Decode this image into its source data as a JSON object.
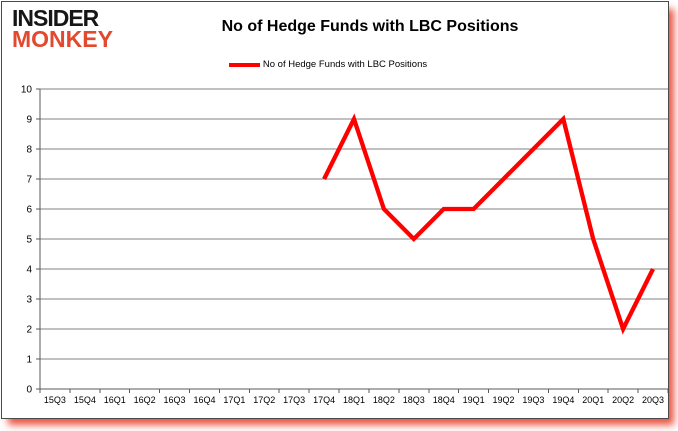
{
  "logo": {
    "line1": "INSIDER",
    "line2": "MONKEY"
  },
  "header": {
    "title": "No of Hedge Funds with LBC Positions"
  },
  "legend": {
    "label": "No of Hedge Funds with LBC Positions"
  },
  "colors": {
    "series_red": "#ff0000",
    "logo_red": "#e2492f",
    "gridline": "#808080",
    "axis": "#595959",
    "text": "#000000",
    "shadow_red": "#e63a24"
  },
  "chart_data": {
    "type": "line",
    "title": "No of Hedge Funds with LBC Positions",
    "categories": [
      "15Q3",
      "15Q4",
      "16Q1",
      "16Q2",
      "16Q3",
      "16Q4",
      "17Q1",
      "17Q2",
      "17Q3",
      "17Q4",
      "18Q1",
      "18Q2",
      "18Q3",
      "18Q4",
      "19Q1",
      "19Q2",
      "19Q3",
      "19Q4",
      "20Q1",
      "20Q2",
      "20Q3"
    ],
    "series": [
      {
        "name": "No of Hedge Funds with LBC Positions",
        "color": "#ff0000",
        "values": [
          null,
          null,
          null,
          null,
          null,
          null,
          null,
          null,
          null,
          7,
          9,
          6,
          5,
          6,
          6,
          7,
          8,
          9,
          5,
          2,
          4
        ]
      }
    ],
    "xlabel": "",
    "ylabel": "",
    "ylim": [
      0,
      10
    ],
    "yticks": [
      0,
      1,
      2,
      3,
      4,
      5,
      6,
      7,
      8,
      9,
      10
    ],
    "grid": "horizontal",
    "legend_position": "top-center"
  }
}
